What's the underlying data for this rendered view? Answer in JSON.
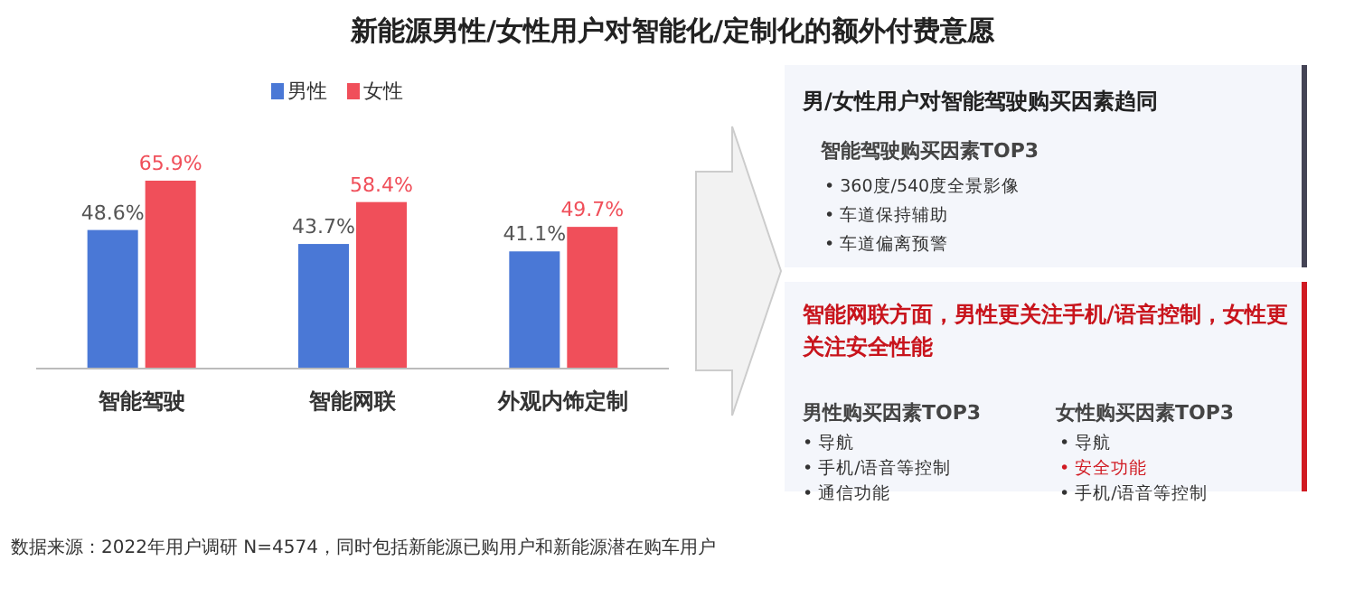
{
  "chart_data": {
    "type": "bar",
    "title": "新能源男性/女性用户对智能化/定制化的额外付费意愿",
    "categories": [
      "智能驾驶",
      "智能网联",
      "外观内饰定制"
    ],
    "series": [
      {
        "name": "男性",
        "color": "#4a78d6",
        "values": [
          48.6,
          43.7,
          41.1
        ],
        "value_labels": [
          "48.6%",
          "43.7%",
          "41.1%"
        ]
      },
      {
        "name": "女性",
        "color": "#f04f5a",
        "values": [
          65.9,
          58.4,
          49.7
        ],
        "value_labels": [
          "65.9%",
          "58.4%",
          "49.7%"
        ]
      }
    ],
    "legend": "top",
    "annotations": [
      "男/女性用户对智能驾驶购买因素趋同",
      "智能驾驶购买因素TOP3",
      "• 360度/540度全景影像",
      "• 车道保持辅助",
      "• 车道偏离预警",
      "智能网联方面，男性更关注手机/语音控制，女性更关注安全性能",
      "男性购买因素TOP3",
      "• 导航",
      "• 手机/语音等控制",
      "• 通信功能",
      "女性购买因素TOP3",
      "• 导航",
      "• 安全功能",
      "• 手机/语音等控制",
      "数据来源：2022年用户调研 N=4574，同时包括新能源已购用户和新能源潜在购车用户"
    ]
  }
}
